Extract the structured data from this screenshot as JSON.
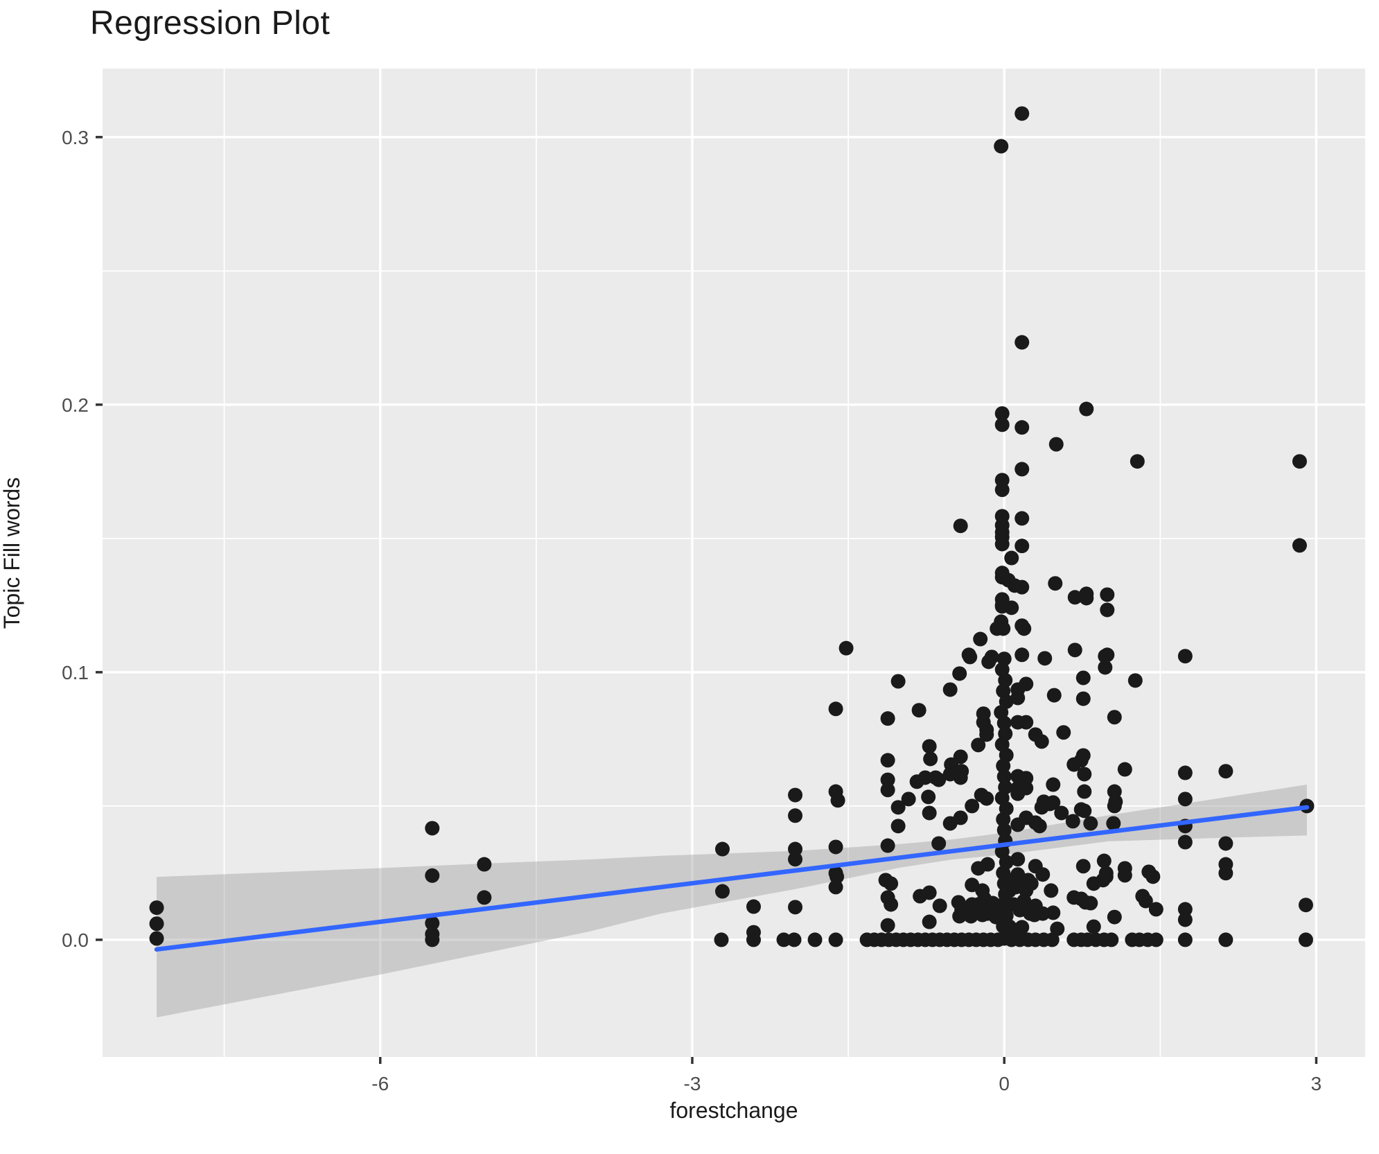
{
  "chart_data": {
    "type": "scatter",
    "title": "Regression Plot",
    "xlabel": "forestchange",
    "ylabel": "Topic Fill words",
    "legend": "none",
    "grid": "major+minor",
    "xlim": [
      -8.67,
      3.47
    ],
    "ylim": [
      -0.0438,
      0.3256
    ],
    "x_ticks": [
      -6,
      -3,
      0,
      3
    ],
    "x_tick_labels": [
      "-6",
      "-3",
      "0",
      "3"
    ],
    "x_minor_ticks": [
      -7.5,
      -4.5,
      -1.5,
      1.5
    ],
    "y_ticks": [
      0.0,
      0.1,
      0.2,
      0.3
    ],
    "y_tick_labels": [
      "0.0",
      "0.1",
      "0.2",
      "0.3"
    ],
    "y_minor_ticks": [
      0.05,
      0.15,
      0.25
    ],
    "colors": {
      "point": "#1a1a1a",
      "regression_line": "#3366FF",
      "band": "#999999",
      "band_opacity": 0.4,
      "panel_bg": "#EBEBEB",
      "grid": "#FFFFFF",
      "tick_mark": "#333333",
      "tick_label": "#4D4D4D",
      "text": "#1A1A1A"
    },
    "regression": {
      "x": [
        -8.15,
        2.91
      ],
      "y": [
        -0.0036,
        0.0495
      ]
    },
    "band": {
      "x": [
        -8.15,
        -6.0,
        -5.0,
        -4.0,
        -3.3,
        -2.0,
        -1.0,
        -0.5,
        0.0,
        1.0,
        2.0,
        2.91
      ],
      "upper": [
        0.0235,
        0.0268,
        0.0285,
        0.03,
        0.0314,
        0.0332,
        0.0358,
        0.0375,
        0.04,
        0.0465,
        0.0525,
        0.058
      ],
      "lower": [
        -0.029,
        -0.013,
        -0.005,
        0.003,
        0.0098,
        0.019,
        0.027,
        0.03,
        0.0318,
        0.0368,
        0.038,
        0.039
      ]
    },
    "points": [
      [
        -8.15,
        0.012
      ],
      [
        -8.15,
        0.006
      ],
      [
        -8.15,
        0.0005
      ],
      [
        -5.5,
        0.0417
      ],
      [
        -5.5,
        0.024
      ],
      [
        -5.5,
        0.0062
      ],
      [
        -5.5,
        0.0021
      ],
      [
        -5.5,
        0.0
      ],
      [
        -5.0,
        0.0282
      ],
      [
        -5.0,
        0.0158
      ],
      [
        -2.71,
        0.0339
      ],
      [
        -2.71,
        0.0181
      ],
      [
        -2.72,
        0.0
      ],
      [
        -2.41,
        0.0124
      ],
      [
        -2.41,
        0.0028
      ],
      [
        -2.41,
        0.0
      ],
      [
        -2.12,
        0.0
      ],
      [
        -2.01,
        0.0541
      ],
      [
        -2.01,
        0.0464
      ],
      [
        -2.01,
        0.0339
      ],
      [
        -2.01,
        0.0301
      ],
      [
        -2.01,
        0.0122
      ],
      [
        -2.02,
        0.0
      ],
      [
        -1.82,
        0.0
      ],
      [
        -1.62,
        0.0863
      ],
      [
        -1.62,
        0.0554
      ],
      [
        -1.6,
        0.0521
      ],
      [
        -1.62,
        0.0347
      ],
      [
        -1.62,
        0.0249
      ],
      [
        -1.61,
        0.0236
      ],
      [
        -1.62,
        0.0197
      ],
      [
        -1.62,
        0.0
      ],
      [
        -1.52,
        0.109
      ],
      [
        -1.32,
        0.0
      ],
      [
        -1.25,
        0.0
      ],
      [
        -1.18,
        0.0
      ],
      [
        -1.11,
        0.0
      ],
      [
        -1.04,
        0.0
      ],
      [
        -0.97,
        0.0
      ],
      [
        -0.9,
        0.0
      ],
      [
        -0.83,
        0.0
      ],
      [
        -0.76,
        0.0
      ],
      [
        -0.69,
        0.0
      ],
      [
        -0.62,
        0.0
      ],
      [
        -0.55,
        0.0
      ],
      [
        -0.48,
        0.0
      ],
      [
        -0.41,
        0.0
      ],
      [
        -0.34,
        0.0
      ],
      [
        -0.27,
        0.0
      ],
      [
        -0.2,
        0.0
      ],
      [
        -0.13,
        0.0
      ],
      [
        -0.06,
        0.0
      ],
      [
        -1.14,
        0.0223
      ],
      [
        -1.09,
        0.021
      ],
      [
        -1.12,
        0.0158
      ],
      [
        -1.09,
        0.0132
      ],
      [
        -1.12,
        0.0054
      ],
      [
        -0.81,
        0.0163
      ],
      [
        -0.72,
        0.0176
      ],
      [
        -0.62,
        0.0127
      ],
      [
        -0.72,
        0.0067
      ],
      [
        -0.44,
        0.014
      ],
      [
        -0.41,
        0.0111
      ],
      [
        -0.43,
        0.0088
      ],
      [
        -0.32,
        0.0088
      ],
      [
        -0.31,
        0.0132
      ],
      [
        -0.21,
        0.0184
      ],
      [
        -0.19,
        0.0153
      ],
      [
        -0.2,
        0.0119
      ],
      [
        -0.21,
        0.0093
      ],
      [
        -0.11,
        0.0137
      ],
      [
        -0.1,
        0.0106
      ],
      [
        -0.08,
        0.0085
      ],
      [
        -1.02,
        0.0966
      ],
      [
        -1.12,
        0.0827
      ],
      [
        -0.82,
        0.0858
      ],
      [
        -0.52,
        0.0935
      ],
      [
        -0.43,
        0.0995
      ],
      [
        -0.33,
        0.1057
      ],
      [
        -0.72,
        0.0723
      ],
      [
        -0.71,
        0.0676
      ],
      [
        -1.12,
        0.0671
      ],
      [
        -1.12,
        0.0598
      ],
      [
        -1.12,
        0.056
      ],
      [
        -0.84,
        0.0591
      ],
      [
        -0.76,
        0.0606
      ],
      [
        -0.66,
        0.0606
      ],
      [
        -0.63,
        0.0598
      ],
      [
        -0.52,
        0.0619
      ],
      [
        -0.51,
        0.0655
      ],
      [
        -0.42,
        0.0684
      ],
      [
        -0.41,
        0.063
      ],
      [
        -0.42,
        0.0606
      ],
      [
        -0.92,
        0.0526
      ],
      [
        -0.73,
        0.0534
      ],
      [
        -0.72,
        0.0474
      ],
      [
        -1.02,
        0.0495
      ],
      [
        -1.02,
        0.0425
      ],
      [
        -0.52,
        0.0435
      ],
      [
        -0.42,
        0.0456
      ],
      [
        -0.63,
        0.036
      ],
      [
        -1.12,
        0.0352
      ],
      [
        -0.15,
        0.1039
      ],
      [
        -0.2,
        0.0845
      ],
      [
        -0.2,
        0.0813
      ],
      [
        -0.17,
        0.0785
      ],
      [
        -0.25,
        0.0728
      ],
      [
        -0.17,
        0.0767
      ],
      [
        -0.22,
        0.0541
      ],
      [
        -0.17,
        0.0528
      ],
      [
        -0.31,
        0.05
      ],
      [
        -0.16,
        0.0282
      ],
      [
        -0.25,
        0.0267
      ],
      [
        -0.31,
        0.0205
      ],
      [
        -0.25,
        0.0132
      ],
      [
        -0.16,
        0.0098
      ],
      [
        -0.23,
        0.1124
      ],
      [
        -0.12,
        0.1057
      ],
      [
        -0.34,
        0.1065
      ],
      [
        0.17,
        0.3088
      ],
      [
        -0.03,
        0.2966
      ],
      [
        0.17,
        0.2233
      ],
      [
        -0.02,
        0.1967
      ],
      [
        -0.02,
        0.1925
      ],
      [
        0.17,
        0.1915
      ],
      [
        0.17,
        0.1759
      ],
      [
        -0.02,
        0.1718
      ],
      [
        -0.02,
        0.1682
      ],
      [
        -0.42,
        0.1547
      ],
      [
        -0.02,
        0.1583
      ],
      [
        -0.02,
        0.1549
      ],
      [
        -0.02,
        0.1523
      ],
      [
        -0.02,
        0.1505
      ],
      [
        0.17,
        0.1575
      ],
      [
        -0.02,
        0.1479
      ],
      [
        0.17,
        0.1472
      ],
      [
        0.07,
        0.1427
      ],
      [
        -0.02,
        0.1371
      ],
      [
        -0.02,
        0.1355
      ],
      [
        0.04,
        0.1344
      ],
      [
        0.1,
        0.1324
      ],
      [
        0.17,
        0.1318
      ],
      [
        -0.02,
        0.1272
      ],
      [
        -0.02,
        0.1251
      ],
      [
        -0.02,
        0.1246
      ],
      [
        0.07,
        0.1241
      ],
      [
        -0.03,
        0.1189
      ],
      [
        0.17,
        0.1174
      ],
      [
        -0.07,
        0.1163
      ],
      [
        -0.01,
        0.1163
      ],
      [
        0.17,
        0.1065
      ],
      [
        0.0,
        0.105
      ],
      [
        -0.02,
        0.101
      ],
      [
        0.01,
        0.097
      ],
      [
        -0.01,
        0.093
      ],
      [
        0.02,
        0.089
      ],
      [
        -0.03,
        0.085
      ],
      [
        0.0,
        0.081
      ],
      [
        0.01,
        0.077
      ],
      [
        -0.02,
        0.073
      ],
      [
        0.02,
        0.069
      ],
      [
        -0.01,
        0.065
      ],
      [
        0.0,
        0.061
      ],
      [
        0.01,
        0.057
      ],
      [
        -0.02,
        0.053
      ],
      [
        0.02,
        0.049
      ],
      [
        -0.01,
        0.045
      ],
      [
        0.0,
        0.041
      ],
      [
        0.01,
        0.037
      ],
      [
        -0.02,
        0.033
      ],
      [
        0.02,
        0.029
      ],
      [
        -0.01,
        0.025
      ],
      [
        0.0,
        0.021
      ],
      [
        0.01,
        0.017
      ],
      [
        -0.02,
        0.013
      ],
      [
        0.02,
        0.009
      ],
      [
        -0.01,
        0.005
      ],
      [
        0.0,
        0.0005
      ],
      [
        0.48,
        0.0914
      ],
      [
        0.57,
        0.0775
      ],
      [
        0.47,
        0.058
      ],
      [
        0.38,
        0.0516
      ],
      [
        0.47,
        0.0513
      ],
      [
        0.34,
        0.0425
      ],
      [
        0.13,
        0.0935
      ],
      [
        0.21,
        0.0956
      ],
      [
        0.13,
        0.0904
      ],
      [
        0.13,
        0.0813
      ],
      [
        0.21,
        0.0813
      ],
      [
        0.3,
        0.0767
      ],
      [
        0.36,
        0.0741
      ],
      [
        0.13,
        0.0611
      ],
      [
        0.21,
        0.0604
      ],
      [
        0.13,
        0.0567
      ],
      [
        0.21,
        0.0567
      ],
      [
        0.36,
        0.0495
      ],
      [
        0.44,
        0.0508
      ],
      [
        0.13,
        0.0546
      ],
      [
        0.3,
        0.0438
      ],
      [
        0.13,
        0.043
      ],
      [
        0.21,
        0.0456
      ],
      [
        0.13,
        0.0301
      ],
      [
        0.3,
        0.0275
      ],
      [
        0.37,
        0.0244
      ],
      [
        0.13,
        0.0244
      ],
      [
        0.21,
        0.0184
      ],
      [
        0.3,
        0.0127
      ],
      [
        0.37,
        0.0098
      ],
      [
        0.05,
        0.0223
      ],
      [
        0.05,
        0.0184
      ],
      [
        0.11,
        0.0197
      ],
      [
        0.15,
        0.021
      ],
      [
        0.23,
        0.0223
      ],
      [
        0.26,
        0.021
      ],
      [
        0.19,
        0.0145
      ],
      [
        0.09,
        0.0132
      ],
      [
        0.15,
        0.0111
      ],
      [
        0.25,
        0.0098
      ],
      [
        0.29,
        0.0093
      ],
      [
        0.05,
        0.0049
      ],
      [
        0.12,
        0.0036
      ],
      [
        0.17,
        0.0047
      ],
      [
        0.45,
        0.0184
      ],
      [
        0.47,
        0.0101
      ],
      [
        0.67,
        0.0158
      ],
      [
        0.74,
        0.0153
      ],
      [
        0.78,
        0.014
      ],
      [
        0.83,
        0.0137
      ],
      [
        0.86,
        0.021
      ],
      [
        0.95,
        0.0223
      ],
      [
        0.98,
        0.0236
      ],
      [
        0.86,
        0.0049
      ],
      [
        0.51,
        0.0041
      ],
      [
        1.06,
        0.0085
      ],
      [
        1.16,
        0.0241
      ],
      [
        1.43,
        0.0236
      ],
      [
        1.33,
        0.0163
      ],
      [
        1.36,
        0.0145
      ],
      [
        1.46,
        0.0114
      ],
      [
        0.76,
        0.0275
      ],
      [
        0.96,
        0.0295
      ],
      [
        0.98,
        0.0249
      ],
      [
        1.16,
        0.0267
      ],
      [
        1.39,
        0.0254
      ],
      [
        0.07,
        0.0
      ],
      [
        0.15,
        0.0
      ],
      [
        0.23,
        0.0
      ],
      [
        0.3,
        0.0
      ],
      [
        0.38,
        0.0
      ],
      [
        0.46,
        0.0
      ],
      [
        0.67,
        0.0
      ],
      [
        0.74,
        0.0
      ],
      [
        0.8,
        0.0
      ],
      [
        0.88,
        0.0
      ],
      [
        0.96,
        0.0
      ],
      [
        1.03,
        0.0
      ],
      [
        1.23,
        0.0
      ],
      [
        1.3,
        0.0
      ],
      [
        1.38,
        0.0
      ],
      [
        1.46,
        0.0
      ],
      [
        1.74,
        0.0
      ],
      [
        2.13,
        0.0
      ],
      [
        2.9,
        0.0
      ],
      [
        1.74,
        0.106
      ],
      [
        1.26,
        0.0969
      ],
      [
        0.76,
        0.0979
      ],
      [
        0.76,
        0.0901
      ],
      [
        0.97,
        0.106
      ],
      [
        0.97,
        0.1018
      ],
      [
        1.06,
        0.0832
      ],
      [
        0.76,
        0.0689
      ],
      [
        0.74,
        0.0671
      ],
      [
        0.67,
        0.0655
      ],
      [
        1.16,
        0.0637
      ],
      [
        0.77,
        0.0619
      ],
      [
        0.77,
        0.0554
      ],
      [
        0.77,
        0.0482
      ],
      [
        1.06,
        0.0554
      ],
      [
        1.07,
        0.0516
      ],
      [
        1.06,
        0.05
      ],
      [
        1.74,
        0.0624
      ],
      [
        2.13,
        0.063
      ],
      [
        1.74,
        0.0526
      ],
      [
        1.74,
        0.0425
      ],
      [
        1.74,
        0.0365
      ],
      [
        2.13,
        0.036
      ],
      [
        2.13,
        0.0282
      ],
      [
        2.13,
        0.0249
      ],
      [
        2.91,
        0.05
      ],
      [
        0.66,
        0.0443
      ],
      [
        0.83,
        0.0435
      ],
      [
        1.05,
        0.0435
      ],
      [
        0.74,
        0.0487
      ],
      [
        0.55,
        0.0474
      ],
      [
        1.74,
        0.0114
      ],
      [
        1.74,
        0.0075
      ],
      [
        2.9,
        0.013
      ],
      [
        0.79,
        0.1984
      ],
      [
        0.5,
        0.1852
      ],
      [
        1.28,
        0.1788
      ],
      [
        2.84,
        0.1788
      ],
      [
        2.84,
        0.1474
      ],
      [
        0.49,
        0.1332
      ],
      [
        0.68,
        0.128
      ],
      [
        0.79,
        0.1293
      ],
      [
        0.79,
        0.1277
      ],
      [
        0.99,
        0.129
      ],
      [
        0.99,
        0.1233
      ],
      [
        0.19,
        0.1163
      ],
      [
        0.68,
        0.1083
      ],
      [
        0.99,
        0.1065
      ],
      [
        0.39,
        0.1052
      ]
    ]
  }
}
